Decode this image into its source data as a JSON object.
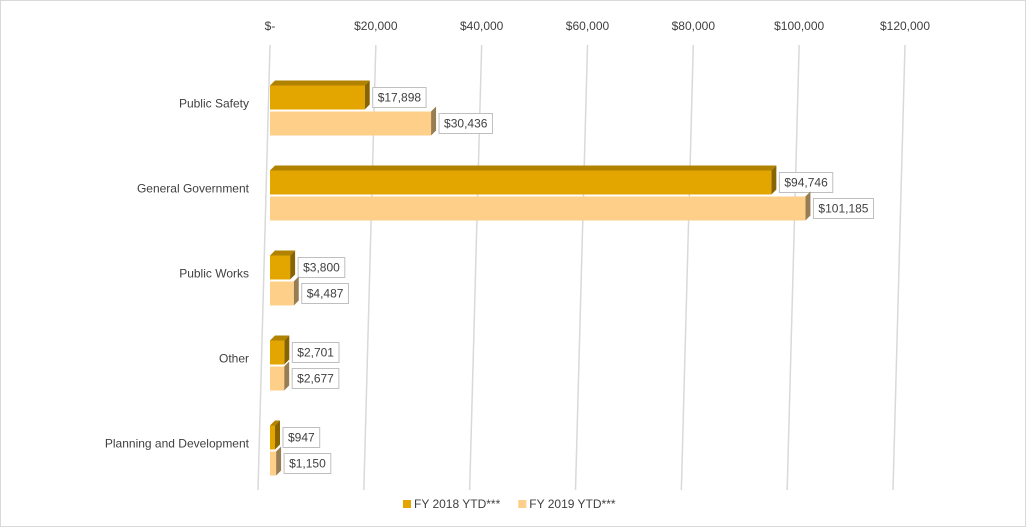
{
  "chart_data": {
    "type": "hbar",
    "categories": [
      "Public Safety",
      "General Government",
      "Public Works",
      "Other",
      "Planning and Development"
    ],
    "series": [
      {
        "name": "FY 2018 YTD***",
        "color": "#e3a600",
        "values": [
          17898,
          94746,
          3800,
          2701,
          947
        ],
        "value_labels": [
          "$17,898",
          "$94,746",
          "$3,800",
          "$2,701",
          "$947"
        ]
      },
      {
        "name": "FY 2019 YTD***",
        "color": "#fecf88",
        "values": [
          30436,
          101185,
          4487,
          2677,
          1150
        ],
        "value_labels": [
          "$30,436",
          "$101,185",
          "$4,487",
          "$2,677",
          "$1,150"
        ]
      }
    ],
    "xlim": [
      0,
      120000
    ],
    "xticks": [
      {
        "value": 0,
        "label": "$-"
      },
      {
        "value": 20000,
        "label": "$20,000"
      },
      {
        "value": 40000,
        "label": "$40,000"
      },
      {
        "value": 60000,
        "label": "$60,000"
      },
      {
        "value": 80000,
        "label": "$80,000"
      },
      {
        "value": 100000,
        "label": "$100,000"
      },
      {
        "value": 120000,
        "label": "$120,000"
      }
    ],
    "grid": true,
    "legend": "bottom"
  }
}
